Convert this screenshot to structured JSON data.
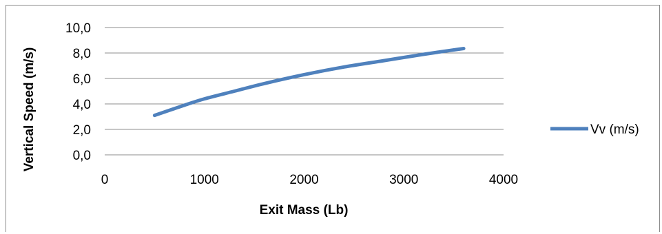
{
  "chart_data": {
    "type": "line",
    "xlabel": "Exit Mass (Lb)",
    "ylabel": "Vertical Speed (m/s)",
    "xlim": [
      0,
      4000
    ],
    "ylim": [
      0,
      10
    ],
    "x_ticks": [
      "0",
      "1000",
      "2000",
      "3000",
      "4000"
    ],
    "y_ticks": [
      "0,0",
      "2,0",
      "4,0",
      "6,0",
      "8,0",
      "10,0"
    ],
    "grid": "horizontal",
    "legend": "right",
    "series": [
      {
        "name": "Vv (m/s)",
        "color": "#4f81bd",
        "x": [
          500,
          800,
          1000,
          1300,
          1600,
          2000,
          2400,
          2800,
          3200,
          3600
        ],
        "y": [
          3.1,
          3.9,
          4.4,
          5.0,
          5.6,
          6.3,
          6.9,
          7.4,
          7.9,
          8.35
        ]
      }
    ]
  }
}
